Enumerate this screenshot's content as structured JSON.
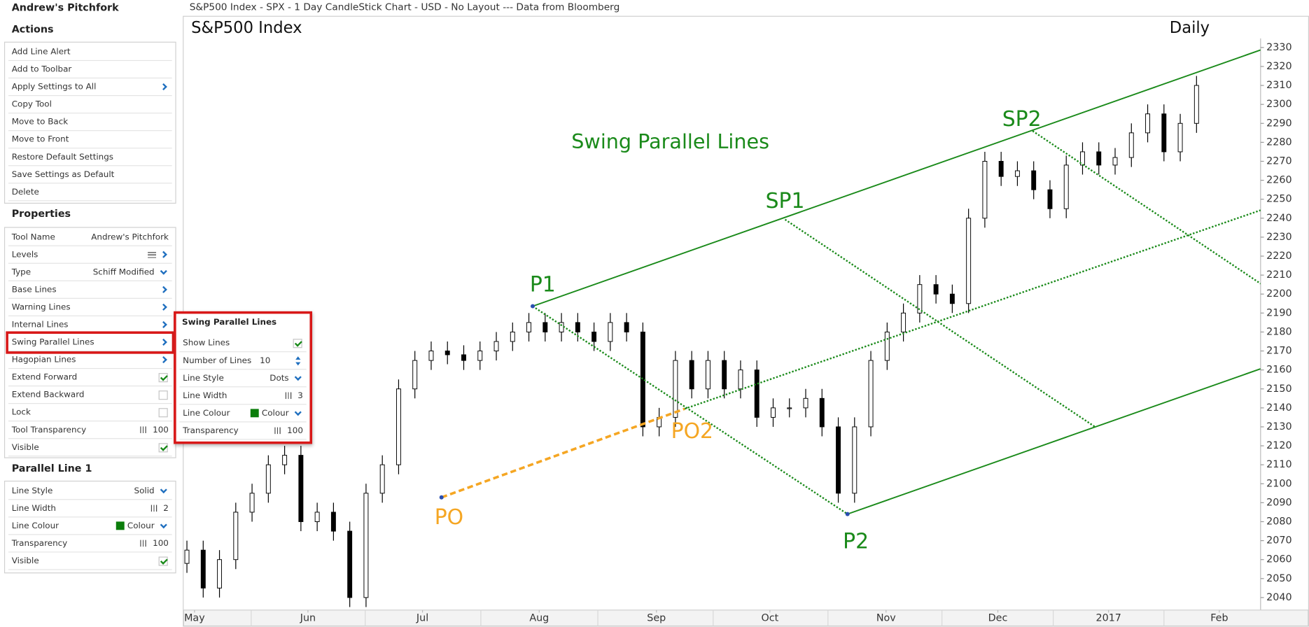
{
  "window_title": "S&P500 Index - SPX - 1 Day CandleStick Chart - USD - No Layout --- Data from Bloomberg",
  "panel": {
    "title": "Andrew's Pitchfork",
    "actions_heading": "Actions",
    "actions": [
      {
        "label": "Add Line Alert"
      },
      {
        "label": "Add to Toolbar"
      },
      {
        "label": "Apply Settings to All",
        "control": "arrow"
      },
      {
        "label": "Copy Tool"
      },
      {
        "label": "Move to Back"
      },
      {
        "label": "Move to Front"
      },
      {
        "label": "Restore Default Settings"
      },
      {
        "label": "Save Settings as Default"
      },
      {
        "label": "Delete"
      }
    ],
    "properties_heading": "Properties",
    "properties": [
      {
        "label": "Tool Name",
        "value": "Andrew's Pitchfork"
      },
      {
        "label": "Levels",
        "control": "menu"
      },
      {
        "label": "Type",
        "value": "Schiff Modified",
        "control": "dropdown"
      },
      {
        "label": "Base Lines",
        "control": "arrow"
      },
      {
        "label": "Warning Lines",
        "control": "arrow"
      },
      {
        "label": "Internal Lines",
        "control": "arrow"
      },
      {
        "label": "Swing Parallel Lines",
        "control": "arrow",
        "selected": true
      },
      {
        "label": "Hagopian Lines",
        "control": "arrow"
      },
      {
        "label": "Extend Forward",
        "control": "check",
        "checked": true
      },
      {
        "label": "Extend Backward",
        "control": "check",
        "checked": false
      },
      {
        "label": "Lock",
        "control": "check",
        "checked": false
      },
      {
        "label": "Tool Transparency",
        "value": 100,
        "control": "slider"
      },
      {
        "label": "Visible",
        "control": "check",
        "checked": true
      }
    ],
    "parallel_heading": "Parallel Line 1",
    "parallel": [
      {
        "label": "Line Style",
        "value": "Solid",
        "control": "dropdown"
      },
      {
        "label": "Line Width",
        "value": 2,
        "control": "slider"
      },
      {
        "label": "Line Colour",
        "value": "Colour",
        "control": "swatch",
        "color": "#0b7d0b"
      },
      {
        "label": "Transparency",
        "value": 100,
        "control": "slider"
      },
      {
        "label": "Visible",
        "control": "check",
        "checked": true
      }
    ]
  },
  "popup": {
    "title": "Swing Parallel Lines",
    "rows": [
      {
        "label": "Show Lines",
        "control": "check",
        "checked": true
      },
      {
        "label": "Number of Lines",
        "value": 10,
        "control": "spinner"
      },
      {
        "label": "Line Style",
        "value": "Dots",
        "control": "dropdown"
      },
      {
        "label": "Line Width",
        "value": 3,
        "control": "slider"
      },
      {
        "label": "Line Colour",
        "value": "Colour",
        "control": "swatch",
        "color": "#0b7d0b"
      },
      {
        "label": "Transparency",
        "value": 100,
        "control": "slider"
      }
    ]
  },
  "chart_data": {
    "type": "candlestick",
    "title": "S&P500 Index",
    "period": "Daily",
    "annotation": "Swing Parallel Lines",
    "xlim": [
      -0.6,
      197.8
    ],
    "ylim": [
      2033.4,
      2334.8
    ],
    "xticks": [
      {
        "value": 1.4,
        "label": "May"
      },
      {
        "value": 22.3,
        "label": "Jun"
      },
      {
        "value": 43.4,
        "label": "Jul"
      },
      {
        "value": 64.9,
        "label": "Aug"
      },
      {
        "value": 86.5,
        "label": "Sep"
      },
      {
        "value": 107.4,
        "label": "Oct"
      },
      {
        "value": 128.8,
        "label": "Nov"
      },
      {
        "value": 149.4,
        "label": "Dec"
      },
      {
        "value": 169.8,
        "label": "2017"
      },
      {
        "value": 190.2,
        "label": "Feb"
      }
    ],
    "yticks": [
      2040,
      2050,
      2060,
      2070,
      2080,
      2090,
      2100,
      2110,
      2120,
      2130,
      2140,
      2150,
      2160,
      2170,
      2180,
      2190,
      2200,
      2210,
      2220,
      2230,
      2240,
      2250,
      2260,
      2270,
      2280,
      2290,
      2300,
      2310,
      2320,
      2330
    ],
    "candles": {
      "x": [
        0,
        3,
        6,
        9,
        12,
        15,
        18,
        21,
        24,
        27,
        30,
        33,
        36,
        39,
        42,
        45,
        48,
        51,
        54,
        57,
        60,
        63,
        66,
        69,
        72,
        75,
        78,
        81,
        84,
        87,
        90,
        93,
        96,
        99,
        102,
        105,
        108,
        111,
        114,
        117,
        120,
        123,
        126,
        129,
        132,
        135,
        138,
        141,
        144,
        147,
        150,
        153,
        156,
        159,
        162,
        165,
        168,
        171,
        174,
        177,
        180,
        183,
        186
      ],
      "open": [
        2058,
        2065,
        2045,
        2060,
        2085,
        2095,
        2110,
        2115,
        2080,
        2085,
        2075,
        2040,
        2095,
        2110,
        2150,
        2165,
        2170,
        2168,
        2165,
        2170,
        2175,
        2180,
        2185,
        2180,
        2185,
        2180,
        2175,
        2185,
        2180,
        2130,
        2135,
        2165,
        2150,
        2165,
        2150,
        2160,
        2135,
        2140,
        2140,
        2145,
        2130,
        2095,
        2130,
        2165,
        2180,
        2190,
        2205,
        2200,
        2195,
        2240,
        2270,
        2262,
        2265,
        2255,
        2245,
        2268,
        2275,
        2268,
        2272,
        2285,
        2295,
        2275,
        2290
      ],
      "high": [
        2070,
        2070,
        2065,
        2090,
        2100,
        2115,
        2120,
        2120,
        2090,
        2090,
        2080,
        2100,
        2115,
        2155,
        2170,
        2175,
        2175,
        2173,
        2175,
        2180,
        2185,
        2190,
        2190,
        2190,
        2190,
        2185,
        2190,
        2190,
        2185,
        2140,
        2170,
        2170,
        2170,
        2170,
        2165,
        2165,
        2145,
        2145,
        2150,
        2150,
        2135,
        2135,
        2170,
        2185,
        2195,
        2210,
        2210,
        2205,
        2245,
        2275,
        2275,
        2270,
        2270,
        2260,
        2273,
        2280,
        2280,
        2277,
        2290,
        2300,
        2300,
        2295,
        2315
      ],
      "low": [
        2053,
        2040,
        2040,
        2055,
        2080,
        2090,
        2105,
        2075,
        2075,
        2070,
        2035,
        2035,
        2090,
        2105,
        2145,
        2160,
        2163,
        2160,
        2160,
        2165,
        2170,
        2175,
        2175,
        2175,
        2175,
        2170,
        2170,
        2175,
        2125,
        2125,
        2130,
        2145,
        2145,
        2145,
        2145,
        2130,
        2130,
        2135,
        2135,
        2125,
        2090,
        2090,
        2125,
        2160,
        2175,
        2185,
        2195,
        2190,
        2190,
        2235,
        2257,
        2257,
        2250,
        2240,
        2240,
        2263,
        2263,
        2263,
        2267,
        2280,
        2270,
        2270,
        2285
      ],
      "close": [
        2065,
        2045,
        2060,
        2085,
        2095,
        2110,
        2115,
        2080,
        2085,
        2075,
        2040,
        2095,
        2110,
        2150,
        2165,
        2170,
        2168,
        2165,
        2170,
        2175,
        2180,
        2185,
        2180,
        2185,
        2180,
        2175,
        2185,
        2180,
        2130,
        2135,
        2165,
        2150,
        2165,
        2150,
        2160,
        2135,
        2140,
        2140,
        2145,
        2130,
        2095,
        2130,
        2165,
        2180,
        2190,
        2205,
        2200,
        2195,
        2240,
        2270,
        2262,
        2265,
        2255,
        2245,
        2268,
        2275,
        2268,
        2272,
        2285,
        2295,
        2275,
        2290,
        2310
      ]
    },
    "lines": [
      {
        "x": [
          63.7,
          197.8
        ],
        "y": [
          2193.6,
          2328.7
        ],
        "style": "solid",
        "color": "#1a8a1a"
      },
      {
        "x": [
          121.7,
          197.8
        ],
        "y": [
          2084,
          2160.6
        ],
        "style": "solid",
        "color": "#1a8a1a"
      },
      {
        "x": [
          63.7,
          121.7
        ],
        "y": [
          2193.6,
          2084
        ],
        "style": "dots",
        "color": "#1a8a1a"
      },
      {
        "x": [
          91.7,
          197.8
        ],
        "y": [
          2139.5,
          2244.2
        ],
        "style": "dots",
        "color": "#1a8a1a"
      },
      {
        "x": [
          110.2,
          167.4
        ],
        "y": [
          2239.3,
          2129.8
        ],
        "style": "dots",
        "color": "#1a8a1a"
      },
      {
        "x": [
          155.8,
          197.8
        ],
        "y": [
          2286,
          2205.5
        ],
        "style": "dots",
        "color": "#1a8a1a"
      },
      {
        "x": [
          46.9,
          91.7
        ],
        "y": [
          2092.8,
          2139.5
        ],
        "style": "dash",
        "color": "#f5a623"
      }
    ],
    "points": [
      {
        "name": "P1",
        "x": 63.7,
        "y": 2193.6,
        "color": "#1a8a1a",
        "marker": true
      },
      {
        "name": "P2",
        "x": 121.7,
        "y": 2084,
        "color": "#1a8a1a",
        "marker": true
      },
      {
        "name": "PO",
        "x": 46.9,
        "y": 2092.8,
        "color": "#f5a623",
        "marker": true
      },
      {
        "name": "PO2",
        "x": 91.7,
        "y": 2139.5,
        "color": "#f5a623",
        "marker": false
      },
      {
        "name": "SP1",
        "x": 110.2,
        "y": 2239.3,
        "color": "#1a8a1a",
        "marker": false
      },
      {
        "name": "SP2",
        "x": 155.8,
        "y": 2286,
        "color": "#1a8a1a",
        "marker": false
      }
    ]
  }
}
